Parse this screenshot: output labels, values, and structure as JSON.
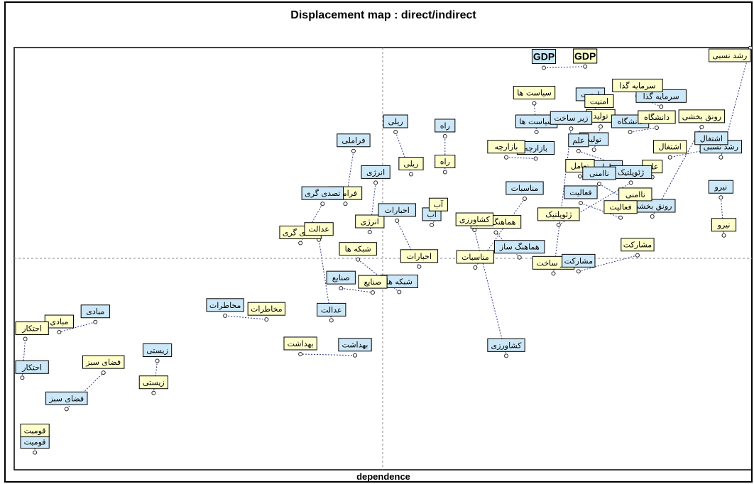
{
  "chart_data": {
    "type": "scatter",
    "title": "Displacement map : direct/indirect",
    "xlabel": "dependence",
    "ylabel": "",
    "grid": false,
    "legend": "none",
    "colors": {
      "direct": "#cce8f8",
      "indirect": "#ffffcc",
      "arrow": "#2e3a8c",
      "frame": "#000000",
      "axis": "#888888"
    },
    "xlim": [
      0,
      1
    ],
    "ylim": [
      0,
      1
    ],
    "points": [
      {
        "label": "GDP",
        "direct": [
          0.718,
          0.952
        ],
        "indirect": [
          0.774,
          0.955
        ]
      },
      {
        "label": "رشد نسبی",
        "direct": [
          0.958,
          0.74
        ],
        "indirect": [
          0.998,
          0.999
        ]
      },
      {
        "label": "سرمایه گذا",
        "direct": [
          0.877,
          0.86
        ],
        "indirect": [
          0.845,
          0.885
        ]
      },
      {
        "label": "رونق بخشی",
        "direct": [
          0.865,
          0.6
        ],
        "indirect": [
          0.932,
          0.812
        ]
      },
      {
        "label": "سیاست ها",
        "direct": [
          0.708,
          0.8
        ],
        "indirect": [
          0.705,
          0.868
        ]
      },
      {
        "label": "امنیت",
        "direct": [
          0.781,
          0.864
        ],
        "indirect": [
          0.793,
          0.848
        ]
      },
      {
        "label": "تولید",
        "direct": [
          0.786,
          0.758
        ],
        "indirect": [
          0.795,
          0.813
        ]
      },
      {
        "label": "دانشگاه",
        "direct": [
          0.835,
          0.8
        ],
        "indirect": [
          0.871,
          0.81
        ]
      },
      {
        "label": "زیر ساخت",
        "direct": [
          0.755,
          0.808
        ],
        "indirect": [
          0.731,
          0.465
        ]
      },
      {
        "label": "علم",
        "direct": [
          0.765,
          0.755
        ],
        "indirect": [
          0.865,
          0.693
        ]
      },
      {
        "label": "اشتغال",
        "direct": [
          0.945,
          0.76
        ],
        "indirect": [
          0.889,
          0.74
        ]
      },
      {
        "label": "بازارچه",
        "direct": [
          0.707,
          0.737
        ],
        "indirect": [
          0.667,
          0.74
        ]
      },
      {
        "label": "تعامل",
        "direct": [
          0.805,
          0.692
        ],
        "indirect": [
          0.767,
          0.695
        ]
      },
      {
        "label": "ژئوپلتیک",
        "direct": [
          0.836,
          0.68
        ],
        "indirect": [
          0.738,
          0.58
        ]
      },
      {
        "label": "ناامنی",
        "direct": [
          0.793,
          0.677
        ],
        "indirect": [
          0.842,
          0.627
        ]
      },
      {
        "label": "نیرو",
        "direct": [
          0.958,
          0.645
        ],
        "indirect": [
          0.962,
          0.555
        ]
      },
      {
        "label": "مناسبات",
        "direct": [
          0.692,
          0.642
        ],
        "indirect": [
          0.625,
          0.479
        ]
      },
      {
        "label": "فعالیت",
        "direct": [
          0.768,
          0.632
        ],
        "indirect": [
          0.822,
          0.597
        ]
      },
      {
        "label": "هماهنگ ساز",
        "direct": [
          0.685,
          0.503
        ],
        "indirect": [
          0.653,
          0.562
        ]
      },
      {
        "label": "مشارکت",
        "direct": [
          0.765,
          0.47
        ],
        "indirect": [
          0.845,
          0.508
        ]
      },
      {
        "label": "راه",
        "direct": [
          0.584,
          0.79
        ],
        "indirect": [
          0.584,
          0.705
        ]
      },
      {
        "label": "ریلی",
        "direct": [
          0.517,
          0.8
        ],
        "indirect": [
          0.538,
          0.7
        ]
      },
      {
        "label": "فراملی",
        "direct": [
          0.46,
          0.755
        ],
        "indirect": [
          0.449,
          0.63
        ]
      },
      {
        "label": "انرژی",
        "direct": [
          0.49,
          0.68
        ],
        "indirect": [
          0.482,
          0.563
        ]
      },
      {
        "label": "تصدی گری",
        "direct": [
          0.418,
          0.63
        ],
        "indirect": [
          0.388,
          0.537
        ]
      },
      {
        "label": "آب",
        "direct": [
          0.566,
          0.58
        ],
        "indirect": [
          0.575,
          0.603
        ]
      },
      {
        "label": "کشاورزی",
        "direct": [
          0.667,
          0.27
        ],
        "indirect": [
          0.624,
          0.568
        ]
      },
      {
        "label": "اخبارات",
        "direct": [
          0.519,
          0.59
        ],
        "indirect": [
          0.549,
          0.481
        ]
      },
      {
        "label": "شبکه ها",
        "direct": [
          0.522,
          0.421
        ],
        "indirect": [
          0.466,
          0.498
        ]
      },
      {
        "label": "صنایع",
        "direct": [
          0.443,
          0.43
        ],
        "indirect": [
          0.486,
          0.42
        ]
      },
      {
        "label": "عدالت",
        "direct": [
          0.43,
          0.354
        ],
        "indirect": [
          0.413,
          0.545
        ]
      },
      {
        "label": "بهداشت",
        "direct": [
          0.462,
          0.271
        ],
        "indirect": [
          0.388,
          0.274
        ]
      },
      {
        "label": "مخاطرات",
        "direct": [
          0.286,
          0.365
        ],
        "indirect": [
          0.342,
          0.356
        ]
      },
      {
        "label": "مبادی",
        "direct": [
          0.11,
          0.35
        ],
        "indirect": [
          0.061,
          0.326
        ]
      },
      {
        "label": "احتکار",
        "direct": [
          0.011,
          0.218
        ],
        "indirect": [
          0.015,
          0.31
        ]
      },
      {
        "label": "فضای سبز",
        "direct": [
          0.071,
          0.144
        ],
        "indirect": [
          0.121,
          0.23
        ]
      },
      {
        "label": "زیستی",
        "direct": [
          0.194,
          0.258
        ],
        "indirect": [
          0.189,
          0.182
        ]
      },
      {
        "label": "قومیت",
        "direct": [
          0.028,
          0.041
        ],
        "indirect": [
          0.028,
          0.068
        ]
      }
    ]
  }
}
